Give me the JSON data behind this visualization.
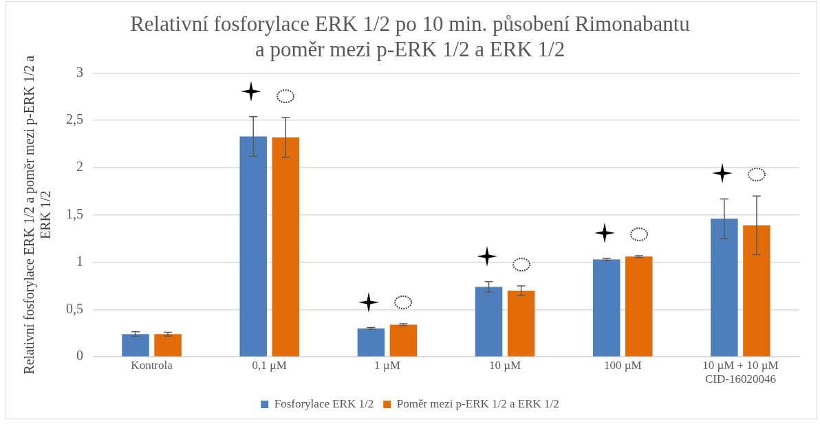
{
  "chart_data": {
    "type": "bar",
    "title": "Relativní fosforylace ERK 1/2 po 10 min. působení Rimonabantu\na poměr mezi p-ERK 1/2 a ERK 1/2",
    "ylabel": "Relativní fosforylace ERK 1/2 a poměr mezi p-ERK 1/2 a ERK 1/2",
    "categories": [
      "Kontrola",
      "0,1 µM",
      "1 µM",
      "10 µM",
      "100 µM",
      "10 µM + 10 µM\nCID-16020046"
    ],
    "series": [
      {
        "name": "Fosforylace ERK 1/2",
        "color": "#4e7ebc",
        "values": [
          0.24,
          2.33,
          0.3,
          0.74,
          1.03,
          1.46
        ],
        "errors": [
          0.025,
          0.21,
          0.01,
          0.055,
          0.01,
          0.21
        ]
      },
      {
        "name": "Poměr mezi p-ERK 1/2 a ERK 1/2",
        "color": "#e36c0a",
        "values": [
          0.24,
          2.32,
          0.34,
          0.7,
          1.06,
          1.39
        ],
        "errors": [
          0.02,
          0.21,
          0.01,
          0.05,
          0.01,
          0.31
        ]
      }
    ],
    "ylim": [
      0,
      3
    ],
    "yticks": [
      {
        "value": 0,
        "label": "0"
      },
      {
        "value": 0.5,
        "label": "0,5"
      },
      {
        "value": 1,
        "label": "1"
      },
      {
        "value": 1.5,
        "label": "1,5"
      },
      {
        "value": 2,
        "label": "2"
      },
      {
        "value": 2.5,
        "label": "2,5"
      },
      {
        "value": 3,
        "label": "3"
      }
    ],
    "grid": "y",
    "legend": "bottom"
  }
}
